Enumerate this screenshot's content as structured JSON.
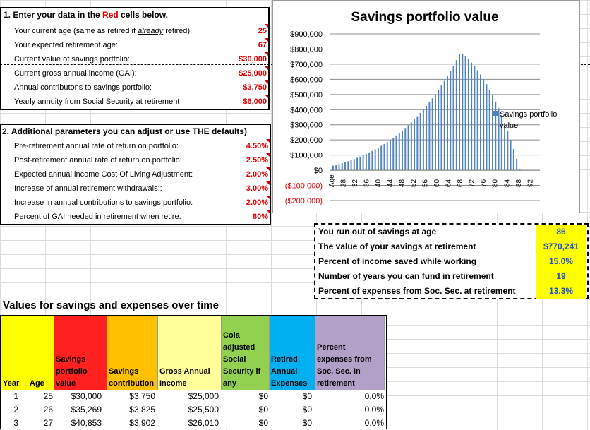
{
  "section1": {
    "title_prefix": "1. Enter  your data in the ",
    "title_red": "Red",
    "title_suffix": " cells below.",
    "rows": [
      {
        "label": "Your current age (same as retired if ",
        "label_italic": "already",
        "label_end": " retired):",
        "value": "25"
      },
      {
        "label": "Your expected retirement age:",
        "label_italic": "",
        "label_end": "",
        "value": "67"
      },
      {
        "label": "Current value of savings portfolio:",
        "label_italic": "",
        "label_end": "",
        "value": "$30,000"
      },
      {
        "label": "Current gross annual income (GAI):",
        "label_italic": "",
        "label_end": "",
        "value": "$25,000"
      },
      {
        "label": "Annual contributons to savings portfolio:",
        "label_italic": "",
        "label_end": "",
        "value": "$3,750"
      },
      {
        "label": "Yearly annuity from Social Security at retirement",
        "label_italic": "",
        "label_end": "",
        "value": "$6,000"
      }
    ]
  },
  "section2": {
    "title": "2. Additional parameters you can adjust or use THE defaults)",
    "rows": [
      {
        "label": "Pre-retirement annual rate of return on portfolio:",
        "value": "4.50%"
      },
      {
        "label": "Post-retirement annual rate of return on portfolio:",
        "value": "2.50%"
      },
      {
        "label": "Expected annual income Cost Of Living Adjustment:",
        "value": "2.00%"
      },
      {
        "label": "Increase of annual retirement withdrawals::",
        "value": "3.00%"
      },
      {
        "label": "Increase in annual contributions to savings portfolio:",
        "value": "2.00%"
      },
      {
        "label": "Percent of GAI needed in retirement when retire:",
        "value": "80%"
      }
    ]
  },
  "chart_data": {
    "type": "bar",
    "title": "Savings portfolio value",
    "legend": "Savings portfolio value",
    "legend_position": "right",
    "y_ticks": [
      "$900,000",
      "$800,000",
      "$700,000",
      "$600,000",
      "$500,000",
      "$400,000",
      "$300,000",
      "$200,000",
      "$100,000",
      "$0",
      "($100,000)",
      "($200,000)"
    ],
    "ylim": [
      -200000,
      900000
    ],
    "x_ticks": [
      "Age",
      "28",
      "32",
      "36",
      "40",
      "44",
      "48",
      "52",
      "56",
      "60",
      "64",
      "68",
      "72",
      "76",
      "80",
      "84",
      "88",
      "92"
    ],
    "x_start_age": 25,
    "values": [
      30000,
      35269,
      40853,
      46766,
      53023,
      59640,
      66633,
      74019,
      81815,
      90039,
      98709,
      107844,
      117465,
      127592,
      138246,
      149449,
      161223,
      173591,
      186578,
      200208,
      214507,
      229502,
      245221,
      261692,
      278946,
      297014,
      315926,
      335717,
      356419,
      378068,
      400700,
      424353,
      449066,
      474879,
      501834,
      529973,
      559342,
      589985,
      621950,
      655287,
      690048,
      726284,
      764050,
      770241,
      752000,
      732000,
      710000,
      686000,
      660000,
      632000,
      601000,
      568000,
      532000,
      494000,
      453000,
      409000,
      362000,
      312000,
      258000,
      201000,
      140000,
      76000,
      8000
    ],
    "grid": true
  },
  "results": [
    {
      "label": "You run out of savings at age",
      "value": "86"
    },
    {
      "label": "The value of your savings at retirement",
      "value": "$770,241"
    },
    {
      "label": "Percent of income saved while working",
      "value": "15.0%"
    },
    {
      "label": "Number of years you can fund in retirement",
      "value": "19"
    },
    {
      "label": "Percent of expenses from Soc. Sec. at retirement",
      "value": "13.3%"
    }
  ],
  "table": {
    "title": "Values for savings and expenses over time",
    "headers": {
      "year": "Year",
      "age": "Age",
      "savings": "Savings portfolio value",
      "contribution": "Savings contribution",
      "income": "Gross Annual Income",
      "cola": "Cola adjusted Social Security if any",
      "expenses": "Retired Annual Expenses",
      "percent": "Percent expenses from Soc. Sec. In retirement"
    },
    "colors": {
      "year_age": "#ffff00",
      "savings": "#ff2020",
      "contribution": "#ffc000",
      "income": "#ffff99",
      "cola": "#92d050",
      "expenses": "#00b0f0",
      "percent": "#b1a0c7"
    },
    "rows": [
      {
        "year": "1",
        "age": "25",
        "savings": "$30,000",
        "contribution": "$3,750",
        "income": "$25,000",
        "cola": "$0",
        "expenses": "$0",
        "percent": "0.0%"
      },
      {
        "year": "2",
        "age": "26",
        "savings": "$35,269",
        "contribution": "$3,825",
        "income": "$25,500",
        "cola": "$0",
        "expenses": "$0",
        "percent": "0.0%"
      },
      {
        "year": "3",
        "age": "27",
        "savings": "$40,853",
        "contribution": "$3,902",
        "income": "$26,010",
        "cola": "$0",
        "expenses": "$0",
        "percent": "0.0%"
      }
    ]
  }
}
